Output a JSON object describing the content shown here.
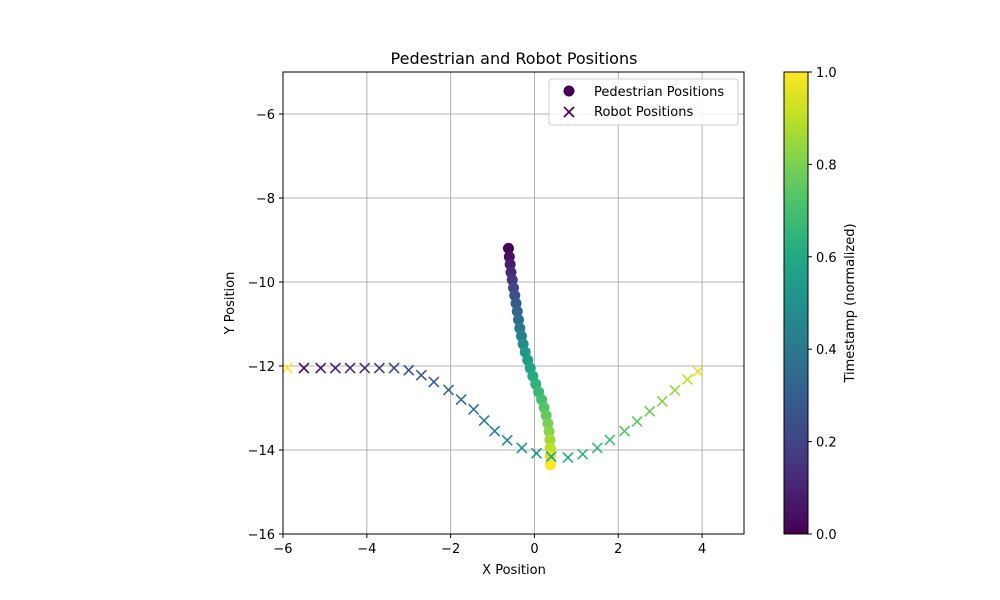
{
  "chart_data": {
    "type": "scatter",
    "title": "Pedestrian and Robot Positions",
    "xlabel": "X Position",
    "ylabel": "Y Position",
    "xlim": [
      -6,
      5
    ],
    "ylim": [
      -16,
      -5
    ],
    "x_ticks": [
      -6,
      -4,
      -2,
      0,
      2,
      4
    ],
    "y_ticks": [
      -16,
      -14,
      -12,
      -10,
      -8,
      -6
    ],
    "grid": true,
    "legend_position": "top-right",
    "colormap": "viridis",
    "colorbar": {
      "label": "Timestamp (normalized)",
      "range": [
        0,
        1
      ],
      "ticks": [
        "0.0",
        "0.2",
        "0.4",
        "0.6",
        "0.8",
        "1.0"
      ]
    },
    "series": [
      {
        "name": "Pedestrian Positions",
        "marker": "circle",
        "points": [
          {
            "x": -0.62,
            "y": -9.2,
            "t": 0.0
          },
          {
            "x": -0.6,
            "y": -9.4,
            "t": 0.04
          },
          {
            "x": -0.58,
            "y": -9.58,
            "t": 0.08
          },
          {
            "x": -0.56,
            "y": -9.77,
            "t": 0.12
          },
          {
            "x": -0.53,
            "y": -9.95,
            "t": 0.16
          },
          {
            "x": -0.5,
            "y": -10.14,
            "t": 0.2
          },
          {
            "x": -0.47,
            "y": -10.32,
            "t": 0.24
          },
          {
            "x": -0.44,
            "y": -10.51,
            "t": 0.28
          },
          {
            "x": -0.41,
            "y": -10.7,
            "t": 0.32
          },
          {
            "x": -0.38,
            "y": -10.9,
            "t": 0.36
          },
          {
            "x": -0.35,
            "y": -11.1,
            "t": 0.4
          },
          {
            "x": -0.31,
            "y": -11.29,
            "t": 0.44
          },
          {
            "x": -0.27,
            "y": -11.48,
            "t": 0.48
          },
          {
            "x": -0.22,
            "y": -11.67,
            "t": 0.52
          },
          {
            "x": -0.16,
            "y": -11.86,
            "t": 0.55
          },
          {
            "x": -0.1,
            "y": -12.05,
            "t": 0.58
          },
          {
            "x": -0.04,
            "y": -12.24,
            "t": 0.61
          },
          {
            "x": 0.03,
            "y": -12.43,
            "t": 0.64
          },
          {
            "x": 0.1,
            "y": -12.62,
            "t": 0.67
          },
          {
            "x": 0.17,
            "y": -12.8,
            "t": 0.7
          },
          {
            "x": 0.23,
            "y": -12.99,
            "t": 0.73
          },
          {
            "x": 0.28,
            "y": -13.18,
            "t": 0.76
          },
          {
            "x": 0.32,
            "y": -13.37,
            "t": 0.79
          },
          {
            "x": 0.35,
            "y": -13.56,
            "t": 0.82
          },
          {
            "x": 0.37,
            "y": -13.76,
            "t": 0.86
          },
          {
            "x": 0.38,
            "y": -13.95,
            "t": 0.9
          },
          {
            "x": 0.38,
            "y": -14.14,
            "t": 0.95
          },
          {
            "x": 0.38,
            "y": -14.35,
            "t": 1.0
          }
        ]
      },
      {
        "name": "Robot Positions",
        "marker": "x",
        "points": [
          {
            "x": -5.9,
            "y": -12.05,
            "t": 1.0
          },
          {
            "x": -5.5,
            "y": -12.05,
            "t": 0.03
          },
          {
            "x": -5.1,
            "y": -12.05,
            "t": 0.06
          },
          {
            "x": -4.75,
            "y": -12.05,
            "t": 0.09
          },
          {
            "x": -4.4,
            "y": -12.05,
            "t": 0.12
          },
          {
            "x": -4.05,
            "y": -12.05,
            "t": 0.15
          },
          {
            "x": -3.7,
            "y": -12.05,
            "t": 0.18
          },
          {
            "x": -3.35,
            "y": -12.05,
            "t": 0.21
          },
          {
            "x": -3.0,
            "y": -12.1,
            "t": 0.24
          },
          {
            "x": -2.7,
            "y": -12.22,
            "t": 0.27
          },
          {
            "x": -2.4,
            "y": -12.38,
            "t": 0.3
          },
          {
            "x": -2.05,
            "y": -12.57,
            "t": 0.33
          },
          {
            "x": -1.75,
            "y": -12.8,
            "t": 0.36
          },
          {
            "x": -1.45,
            "y": -13.03,
            "t": 0.39
          },
          {
            "x": -1.2,
            "y": -13.3,
            "t": 0.42
          },
          {
            "x": -0.95,
            "y": -13.55,
            "t": 0.45
          },
          {
            "x": -0.65,
            "y": -13.77,
            "t": 0.48
          },
          {
            "x": -0.3,
            "y": -13.95,
            "t": 0.51
          },
          {
            "x": 0.05,
            "y": -14.08,
            "t": 0.54
          },
          {
            "x": 0.4,
            "y": -14.16,
            "t": 0.57
          },
          {
            "x": 0.8,
            "y": -14.18,
            "t": 0.6
          },
          {
            "x": 1.15,
            "y": -14.1,
            "t": 0.63
          },
          {
            "x": 1.5,
            "y": -13.95,
            "t": 0.66
          },
          {
            "x": 1.8,
            "y": -13.76,
            "t": 0.69
          },
          {
            "x": 2.15,
            "y": -13.55,
            "t": 0.72
          },
          {
            "x": 2.45,
            "y": -13.32,
            "t": 0.75
          },
          {
            "x": 2.75,
            "y": -13.08,
            "t": 0.78
          },
          {
            "x": 3.05,
            "y": -12.84,
            "t": 0.81
          },
          {
            "x": 3.35,
            "y": -12.58,
            "t": 0.85
          },
          {
            "x": 3.65,
            "y": -12.32,
            "t": 0.9
          },
          {
            "x": 3.9,
            "y": -12.13,
            "t": 0.95
          }
        ]
      }
    ]
  }
}
